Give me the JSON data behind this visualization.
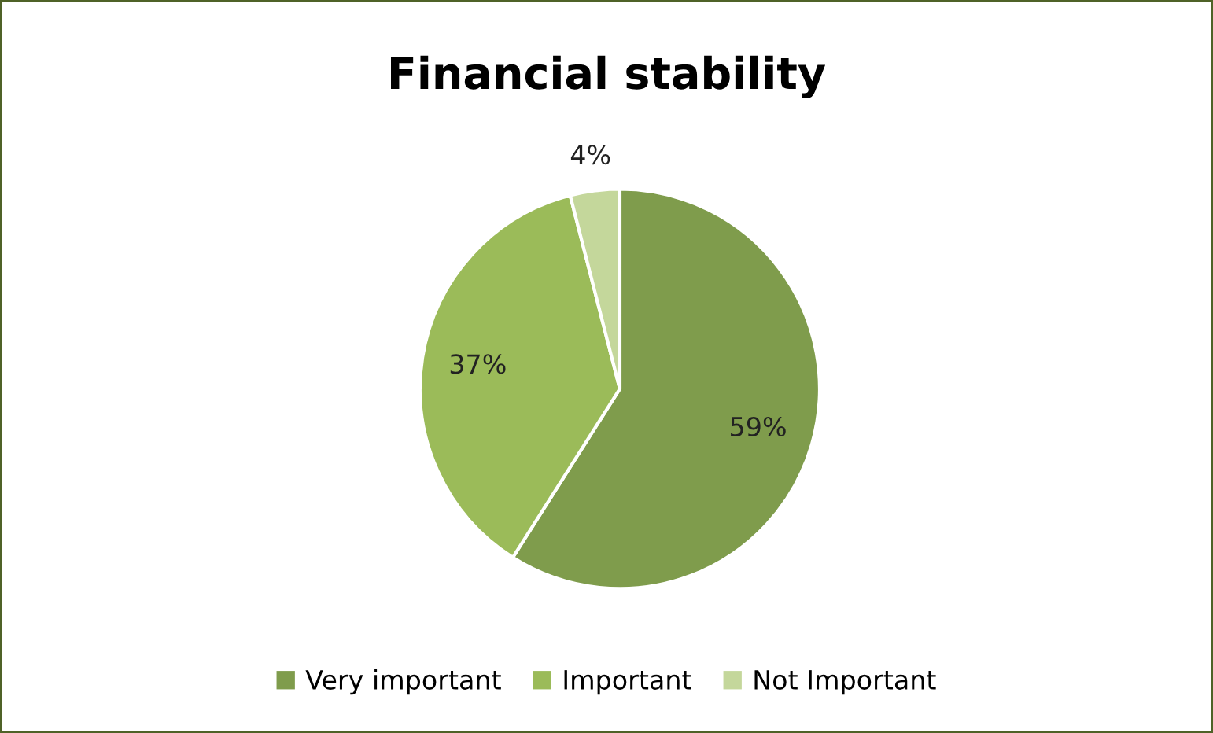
{
  "chart_data": {
    "type": "pie",
    "title": "Financial stability",
    "categories": [
      "Very important",
      "Important",
      "Not Important"
    ],
    "values": [
      59,
      37,
      4
    ],
    "colors": [
      "#7f9c4c",
      "#9bbb59",
      "#c4d79b"
    ],
    "value_labels": [
      "59%",
      "37%",
      "4%"
    ],
    "legend": "bottom"
  }
}
